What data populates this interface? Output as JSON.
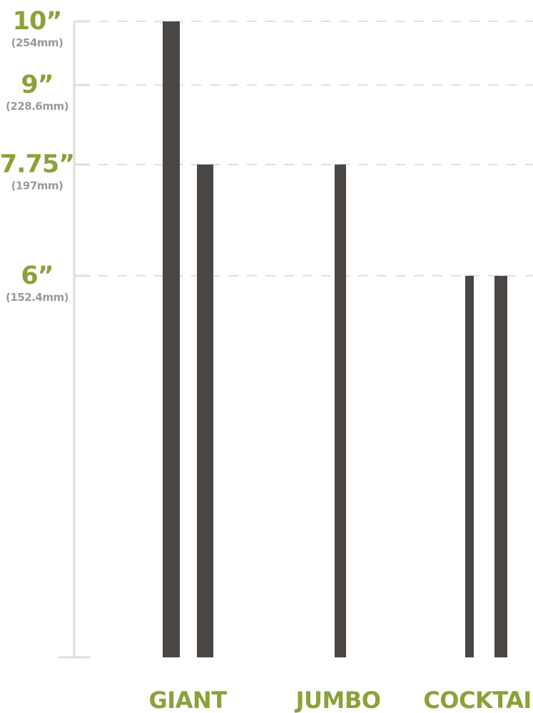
{
  "chart_data": {
    "type": "bar",
    "title": "",
    "xlabel": "",
    "ylabel": "",
    "ylim": [
      0,
      10
    ],
    "grid": true,
    "colors": {
      "accent": "#8aa23a",
      "sub": "#9a9a9a",
      "bar": "#4a4643",
      "grid": "#d6d6d6",
      "axis": "#dddddd"
    },
    "ticks": [
      {
        "value": 10,
        "label": "10”",
        "sublabel": "(254mm)"
      },
      {
        "value": 9,
        "label": "9”",
        "sublabel": "(228.6mm)"
      },
      {
        "value": 7.75,
        "label": "7.75”",
        "sublabel": "(197mm)"
      },
      {
        "value": 6,
        "label": "6”",
        "sublabel": "(152.4mm)"
      }
    ],
    "categories": [
      {
        "label": "GIANT",
        "values": [
          10,
          7.75
        ]
      },
      {
        "label": "JUMBO",
        "values": [
          7.75
        ]
      },
      {
        "label": "COCKTAIL",
        "values": [
          6,
          6
        ]
      }
    ]
  }
}
